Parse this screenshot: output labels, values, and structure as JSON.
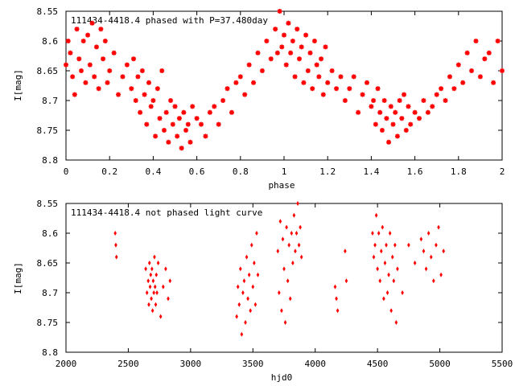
{
  "colors": {
    "points": "#ff0000",
    "axes": "#000000",
    "background": "#ffffff"
  },
  "chart_data": [
    {
      "type": "scatter",
      "title": "111434-4418.4 phased with P=37.480day",
      "xlabel": "phase",
      "ylabel": "I[mag]",
      "xlim": [
        0,
        2
      ],
      "ylim": [
        8.55,
        8.8
      ],
      "y_inverted": true,
      "xticks": [
        "0",
        "0.2",
        "0.4",
        "0.6",
        "0.8",
        "1",
        "1.2",
        "1.4",
        "1.6",
        "1.8",
        "2"
      ],
      "yticks": [
        "8.55",
        "8.6",
        "8.65",
        "8.7",
        "8.75",
        "8.8"
      ],
      "marker": "star",
      "x": [
        0.0,
        0.01,
        0.02,
        0.03,
        0.04,
        0.05,
        0.06,
        0.07,
        0.08,
        0.09,
        0.1,
        0.11,
        0.12,
        0.13,
        0.14,
        0.15,
        0.16,
        0.17,
        0.18,
        0.19,
        0.2,
        0.22,
        0.24,
        0.26,
        0.28,
        0.3,
        0.31,
        0.32,
        0.33,
        0.34,
        0.35,
        0.36,
        0.37,
        0.38,
        0.39,
        0.4,
        0.41,
        0.42,
        0.43,
        0.44,
        0.45,
        0.46,
        0.47,
        0.48,
        0.49,
        0.5,
        0.51,
        0.52,
        0.53,
        0.54,
        0.55,
        0.56,
        0.57,
        0.58,
        0.6,
        0.62,
        0.64,
        0.66,
        0.68,
        0.7,
        0.72,
        0.74,
        0.76,
        0.78,
        0.8,
        0.82,
        0.84,
        0.86,
        0.88,
        0.9,
        0.92,
        0.94,
        0.96,
        0.97,
        0.98,
        0.99,
        1.0,
        1.01,
        1.02,
        1.03,
        1.04,
        1.05,
        1.06,
        1.07,
        1.08,
        1.09,
        1.1,
        1.11,
        1.12,
        1.13,
        1.14,
        1.15,
        1.16,
        1.17,
        1.18,
        1.19,
        1.2,
        1.22,
        1.24,
        1.26,
        1.28,
        1.3,
        1.32,
        1.34,
        1.36,
        1.38,
        1.4,
        1.41,
        1.42,
        1.43,
        1.44,
        1.45,
        1.46,
        1.47,
        1.48,
        1.49,
        1.5,
        1.51,
        1.52,
        1.53,
        1.54,
        1.55,
        1.56,
        1.57,
        1.58,
        1.6,
        1.62,
        1.64,
        1.66,
        1.68,
        1.7,
        1.72,
        1.74,
        1.76,
        1.78,
        1.8,
        1.82,
        1.84,
        1.86,
        1.88,
        1.9,
        1.92,
        1.94,
        1.96,
        1.98,
        2.0
      ],
      "y": [
        8.64,
        8.6,
        8.62,
        8.66,
        8.69,
        8.58,
        8.63,
        8.65,
        8.6,
        8.67,
        8.59,
        8.64,
        8.57,
        8.66,
        8.61,
        8.68,
        8.58,
        8.63,
        8.6,
        8.67,
        8.65,
        8.62,
        8.69,
        8.66,
        8.64,
        8.68,
        8.63,
        8.7,
        8.66,
        8.72,
        8.65,
        8.69,
        8.74,
        8.67,
        8.71,
        8.7,
        8.76,
        8.68,
        8.73,
        8.65,
        8.75,
        8.72,
        8.77,
        8.7,
        8.74,
        8.71,
        8.76,
        8.73,
        8.78,
        8.72,
        8.75,
        8.74,
        8.77,
        8.71,
        8.73,
        8.74,
        8.76,
        8.72,
        8.71,
        8.74,
        8.7,
        8.68,
        8.72,
        8.67,
        8.66,
        8.69,
        8.64,
        8.67,
        8.62,
        8.65,
        8.6,
        8.63,
        8.58,
        8.62,
        8.55,
        8.61,
        8.59,
        8.64,
        8.57,
        8.62,
        8.6,
        8.66,
        8.58,
        8.63,
        8.61,
        8.67,
        8.59,
        8.65,
        8.62,
        8.68,
        8.6,
        8.64,
        8.66,
        8.63,
        8.69,
        8.61,
        8.67,
        8.65,
        8.68,
        8.66,
        8.7,
        8.68,
        8.66,
        8.72,
        8.69,
        8.67,
        8.71,
        8.7,
        8.74,
        8.68,
        8.72,
        8.75,
        8.7,
        8.73,
        8.77,
        8.71,
        8.74,
        8.72,
        8.76,
        8.7,
        8.73,
        8.69,
        8.75,
        8.71,
        8.74,
        8.72,
        8.73,
        8.7,
        8.72,
        8.71,
        8.69,
        8.68,
        8.7,
        8.66,
        8.68,
        8.64,
        8.67,
        8.62,
        8.65,
        8.6,
        8.66,
        8.63,
        8.62,
        8.67,
        8.6,
        8.65
      ]
    },
    {
      "type": "scatter",
      "title": "111434-4418.4 not phased light curve",
      "xlabel": "hjd0",
      "ylabel": "I[mag]",
      "xlim": [
        2000,
        5500
      ],
      "ylim": [
        8.55,
        8.8
      ],
      "y_inverted": true,
      "xticks": [
        "2000",
        "2500",
        "3000",
        "3500",
        "4000",
        "4500",
        "5000",
        "5500"
      ],
      "yticks": [
        "8.55",
        "8.6",
        "8.65",
        "8.7",
        "8.75",
        "8.8"
      ],
      "marker": "diamond",
      "x": [
        2395,
        2400,
        2405,
        2640,
        2650,
        2660,
        2665,
        2670,
        2675,
        2680,
        2685,
        2690,
        2695,
        2700,
        2705,
        2710,
        2715,
        2720,
        2725,
        2730,
        2740,
        2760,
        2780,
        2800,
        2820,
        2835,
        3370,
        3380,
        3390,
        3400,
        3410,
        3420,
        3430,
        3440,
        3450,
        3460,
        3470,
        3480,
        3490,
        3500,
        3510,
        3520,
        3530,
        3540,
        3700,
        3710,
        3720,
        3730,
        3740,
        3750,
        3760,
        3770,
        3780,
        3790,
        3800,
        3810,
        3820,
        3830,
        3840,
        3850,
        3860,
        3870,
        3880,
        3890,
        4160,
        4170,
        4180,
        4240,
        4250,
        4460,
        4470,
        4480,
        4490,
        4500,
        4510,
        4520,
        4530,
        4540,
        4550,
        4560,
        4570,
        4580,
        4590,
        4600,
        4610,
        4620,
        4630,
        4640,
        4650,
        4660,
        4700,
        4750,
        4800,
        4850,
        4870,
        4890,
        4910,
        4930,
        4950,
        4970,
        4990,
        5010,
        5030
      ],
      "y": [
        8.6,
        8.62,
        8.64,
        8.66,
        8.7,
        8.68,
        8.72,
        8.65,
        8.69,
        8.67,
        8.71,
        8.66,
        8.73,
        8.68,
        8.7,
        8.64,
        8.69,
        8.72,
        8.67,
        8.7,
        8.65,
        8.74,
        8.69,
        8.66,
        8.71,
        8.68,
        8.74,
        8.69,
        8.72,
        8.66,
        8.77,
        8.7,
        8.68,
        8.75,
        8.64,
        8.71,
        8.67,
        8.73,
        8.62,
        8.69,
        8.65,
        8.72,
        8.6,
        8.67,
        8.63,
        8.7,
        8.58,
        8.73,
        8.61,
        8.66,
        8.75,
        8.59,
        8.68,
        8.62,
        8.71,
        8.6,
        8.65,
        8.57,
        8.63,
        8.6,
        8.55,
        8.62,
        8.59,
        8.64,
        8.69,
        8.71,
        8.73,
        8.63,
        8.68,
        8.6,
        8.64,
        8.62,
        8.57,
        8.66,
        8.6,
        8.68,
        8.63,
        8.59,
        8.71,
        8.65,
        8.62,
        8.7,
        8.67,
        8.6,
        8.73,
        8.64,
        8.68,
        8.62,
        8.75,
        8.66,
        8.7,
        8.62,
        8.65,
        8.61,
        8.63,
        8.66,
        8.6,
        8.64,
        8.68,
        8.62,
        8.59,
        8.67,
        8.63
      ]
    }
  ]
}
